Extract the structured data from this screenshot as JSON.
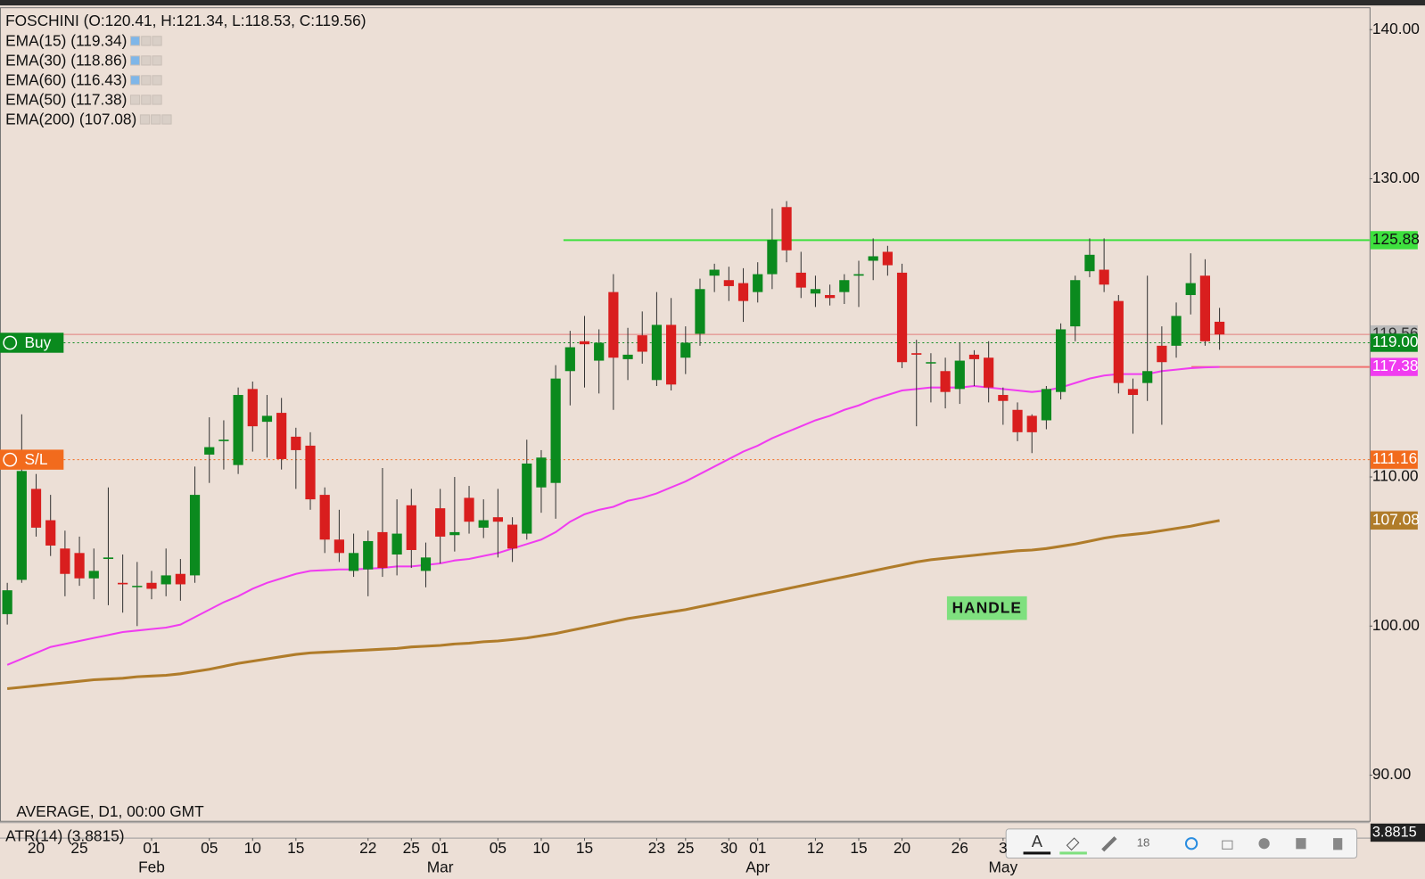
{
  "chart_data": {
    "type": "candlestick",
    "title": "FOSCHINI (O:120.41, H:121.34, L:118.53, C:119.56)",
    "legend": [
      "EMA(15) (119.34)",
      "EMA(30) (118.86)",
      "EMA(60) (116.43)",
      "EMA(50) (117.38)",
      "EMA(200) (107.08)"
    ],
    "footer": "AVERAGE, D1, 00:00 GMT",
    "sub_panel": {
      "title": "ATR(14) (3.8815)",
      "value_label": "3.8815"
    },
    "annotation": "HANDLE",
    "up_color": "#0b8a1e",
    "down_color": "#d91e1e",
    "categories": [
      null,
      null,
      "20",
      null,
      null,
      "25",
      null,
      null,
      null,
      null,
      "01",
      null,
      null,
      null,
      "05",
      null,
      null,
      "10",
      null,
      null,
      "15",
      null,
      null,
      null,
      null,
      "22",
      null,
      null,
      "25",
      null,
      "01",
      null,
      null,
      null,
      "05",
      null,
      null,
      "10",
      null,
      null,
      "15",
      null,
      null,
      null,
      null,
      "23",
      null,
      "25",
      null,
      null,
      "30",
      null,
      "01",
      null,
      null,
      null,
      "12",
      null,
      null,
      "15",
      null,
      null,
      "20",
      null,
      null,
      null,
      "26",
      null,
      null,
      "3",
      null,
      null,
      null,
      null,
      null,
      null,
      null,
      null,
      null,
      null,
      null,
      null,
      null,
      null,
      null,
      null,
      null
    ],
    "months": [
      null,
      null,
      null,
      null,
      null,
      null,
      null,
      null,
      null,
      null,
      "Feb",
      null,
      null,
      null,
      null,
      null,
      null,
      null,
      null,
      null,
      null,
      null,
      null,
      null,
      null,
      null,
      null,
      null,
      null,
      null,
      "Mar",
      null,
      null,
      null,
      null,
      null,
      null,
      null,
      null,
      null,
      null,
      null,
      null,
      null,
      null,
      null,
      null,
      null,
      null,
      null,
      null,
      null,
      "Apr",
      null,
      null,
      null,
      null,
      null,
      null,
      null,
      null,
      null,
      null,
      null,
      null,
      null,
      null,
      null,
      null,
      "May",
      null,
      null,
      null,
      null,
      null,
      null,
      null,
      null,
      null,
      null,
      null,
      null,
      null,
      null,
      null
    ],
    "open": [
      100.8,
      103.1,
      109.2,
      107.1,
      105.2,
      104.9,
      103.2,
      104.5,
      102.9,
      102.7,
      102.9,
      102.8,
      103.5,
      103.4,
      111.5,
      112.4,
      110.8,
      115.9,
      113.7,
      114.3,
      112.7,
      112.1,
      108.8,
      105.8,
      103.7,
      103.8,
      106.3,
      104.8,
      108.1,
      103.7,
      107.9,
      106.1,
      108.6,
      106.6,
      107.3,
      106.8,
      106.2,
      109.3,
      109.6,
      117.1,
      119.1,
      117.8,
      122.4,
      117.9,
      119.5,
      116.5,
      120.2,
      118.0,
      119.6,
      123.5,
      123.2,
      123.0,
      122.4,
      123.6,
      128.1,
      123.7,
      122.3,
      122.2,
      122.4,
      123.5,
      124.5,
      125.1,
      123.7,
      118.3,
      117.7,
      117.1,
      115.9,
      118.2,
      118.0,
      115.5,
      114.5,
      114.1,
      113.8,
      115.7,
      120.1,
      123.8,
      123.9,
      121.8,
      115.9,
      116.3,
      118.8,
      118.8,
      122.2,
      123.5,
      120.41
    ],
    "high": [
      102.9,
      114.2,
      110.2,
      108.8,
      106.4,
      106.0,
      105.2,
      109.3,
      104.8,
      104.3,
      103.7,
      105.2,
      104.5,
      110.7,
      114.0,
      113.8,
      116.0,
      116.4,
      115.5,
      115.3,
      113.3,
      113.0,
      109.3,
      107.8,
      106.2,
      106.4,
      110.6,
      108.5,
      109.2,
      105.6,
      109.2,
      110.0,
      109.4,
      108.5,
      109.2,
      107.3,
      112.5,
      111.8,
      117.5,
      119.8,
      120.8,
      119.9,
      123.6,
      120.0,
      121.1,
      122.4,
      122.0,
      120.1,
      123.3,
      124.3,
      124.1,
      124.0,
      124.4,
      128.0,
      128.5,
      125.1,
      123.5,
      122.9,
      123.6,
      124.5,
      126.0,
      125.5,
      124.3,
      119.2,
      118.3,
      118.0,
      119.0,
      118.5,
      119.1,
      116.0,
      115.0,
      114.2,
      116.1,
      120.3,
      123.5,
      126.0,
      126.0,
      122.2,
      116.6,
      123.5,
      120.1,
      121.7,
      125.0,
      124.6,
      121.34
    ],
    "low": [
      100.1,
      102.9,
      106.0,
      104.7,
      102.0,
      102.7,
      101.8,
      101.4,
      100.9,
      100.0,
      101.8,
      102.0,
      101.7,
      102.9,
      109.6,
      110.5,
      110.2,
      111.7,
      111.3,
      110.5,
      109.2,
      107.8,
      104.9,
      104.3,
      103.3,
      102.0,
      103.3,
      103.4,
      103.9,
      102.6,
      104.2,
      105.0,
      106.2,
      105.9,
      104.6,
      104.3,
      105.8,
      107.6,
      107.2,
      114.8,
      116.0,
      115.6,
      114.5,
      116.5,
      117.6,
      116.1,
      115.8,
      116.9,
      118.8,
      122.4,
      121.8,
      120.4,
      121.7,
      122.6,
      124.4,
      122.0,
      121.4,
      121.5,
      121.6,
      121.4,
      123.2,
      123.5,
      117.3,
      113.4,
      115.0,
      114.6,
      114.9,
      116.1,
      115.0,
      113.5,
      112.4,
      111.6,
      113.2,
      115.2,
      119.1,
      123.4,
      122.4,
      115.6,
      112.9,
      115.1,
      113.5,
      118.0,
      120.9,
      118.8,
      118.53
    ],
    "close": [
      102.4,
      110.4,
      106.6,
      105.4,
      103.5,
      103.2,
      103.7,
      104.6,
      102.8,
      102.7,
      102.5,
      103.4,
      102.8,
      108.8,
      112.0,
      112.5,
      115.5,
      113.4,
      114.1,
      111.2,
      111.8,
      108.5,
      105.8,
      104.9,
      104.9,
      105.7,
      103.9,
      106.2,
      105.1,
      104.6,
      106.0,
      106.3,
      107.0,
      107.1,
      107.0,
      105.2,
      110.9,
      111.3,
      116.6,
      118.7,
      118.9,
      119.0,
      118.0,
      118.2,
      118.4,
      120.2,
      116.2,
      119.0,
      122.6,
      123.9,
      122.8,
      121.8,
      123.6,
      125.9,
      125.2,
      122.7,
      122.6,
      122.0,
      123.2,
      123.6,
      124.8,
      124.2,
      117.7,
      118.2,
      117.7,
      115.7,
      117.8,
      117.9,
      116.0,
      115.1,
      113.0,
      113.0,
      115.9,
      119.9,
      123.2,
      124.9,
      122.9,
      116.3,
      115.5,
      117.1,
      117.7,
      120.8,
      123.0,
      119.1,
      119.56
    ],
    "lines": [
      {
        "color": "#f03cf0",
        "values": [
          97.4,
          97.8,
          98.2,
          98.6,
          98.8,
          99.0,
          99.2,
          99.4,
          99.6,
          99.7,
          99.8,
          99.9,
          100.1,
          100.6,
          101.1,
          101.6,
          102.0,
          102.5,
          102.9,
          103.2,
          103.5,
          103.7,
          103.75,
          103.8,
          103.8,
          103.85,
          103.9,
          104.0,
          104.0,
          104.1,
          104.2,
          104.4,
          104.5,
          104.7,
          104.9,
          105.2,
          105.5,
          105.8,
          106.3,
          107.0,
          107.5,
          107.8,
          108.0,
          108.4,
          108.6,
          108.9,
          109.3,
          109.7,
          110.2,
          110.7,
          111.2,
          111.7,
          112.1,
          112.6,
          113.0,
          113.4,
          113.8,
          114.1,
          114.5,
          114.8,
          115.2,
          115.5,
          115.8,
          115.9,
          116.0,
          116.0,
          116.0,
          116.1,
          116.0,
          115.9,
          115.8,
          115.7,
          115.8,
          116.0,
          116.3,
          116.6,
          116.8,
          116.9,
          116.9,
          116.9,
          117.1,
          117.2,
          117.3,
          117.35,
          117.38
        ]
      },
      {
        "color": "#b07c2a",
        "values": [
          95.8,
          95.9,
          96.0,
          96.1,
          96.2,
          96.3,
          96.4,
          96.45,
          96.5,
          96.6,
          96.65,
          96.7,
          96.8,
          96.95,
          97.1,
          97.3,
          97.5,
          97.65,
          97.8,
          97.95,
          98.1,
          98.2,
          98.25,
          98.3,
          98.35,
          98.4,
          98.45,
          98.5,
          98.6,
          98.65,
          98.7,
          98.8,
          98.85,
          98.95,
          99.0,
          99.1,
          99.2,
          99.35,
          99.5,
          99.7,
          99.9,
          100.1,
          100.3,
          100.5,
          100.65,
          100.8,
          100.95,
          101.1,
          101.3,
          101.5,
          101.7,
          101.9,
          102.1,
          102.3,
          102.5,
          102.7,
          102.9,
          103.1,
          103.3,
          103.5,
          103.7,
          103.9,
          104.1,
          104.3,
          104.45,
          104.55,
          104.65,
          104.75,
          104.85,
          104.95,
          105.05,
          105.1,
          105.2,
          105.35,
          105.5,
          105.7,
          105.9,
          106.05,
          106.15,
          106.25,
          106.4,
          106.55,
          106.7,
          106.9,
          107.08
        ]
      }
    ],
    "levels": [
      {
        "value": 119.56,
        "label": "119.56",
        "color": "#e06666",
        "style": "thin"
      },
      {
        "value": 125.88,
        "label": "125.88",
        "color": "#3ee03e",
        "style": "solid"
      },
      {
        "value": 119.0,
        "label": "119.00",
        "color": "#0a8a1e",
        "style": "dotted",
        "tag": "Buy"
      },
      {
        "value": 117.38,
        "label": "117.38",
        "color": "#f03cf0",
        "style": "stub"
      },
      {
        "value": 111.16,
        "label": "111.16",
        "color": "#f26b1d",
        "style": "dotted",
        "tag": "S/L"
      },
      {
        "value": 107.08,
        "label": "107.08",
        "color": "#b07c2a",
        "style": "none"
      }
    ],
    "ylim": [
      87,
      141.5
    ],
    "yticks": [
      {
        "value": 140,
        "label": "140.00"
      },
      {
        "value": 130,
        "label": "130.00"
      },
      {
        "value": 110,
        "label": "110.00"
      },
      {
        "value": 100,
        "label": "100.00"
      },
      {
        "value": 90,
        "label": "90.00"
      }
    ]
  },
  "toolbar": {
    "font_size": "18"
  }
}
